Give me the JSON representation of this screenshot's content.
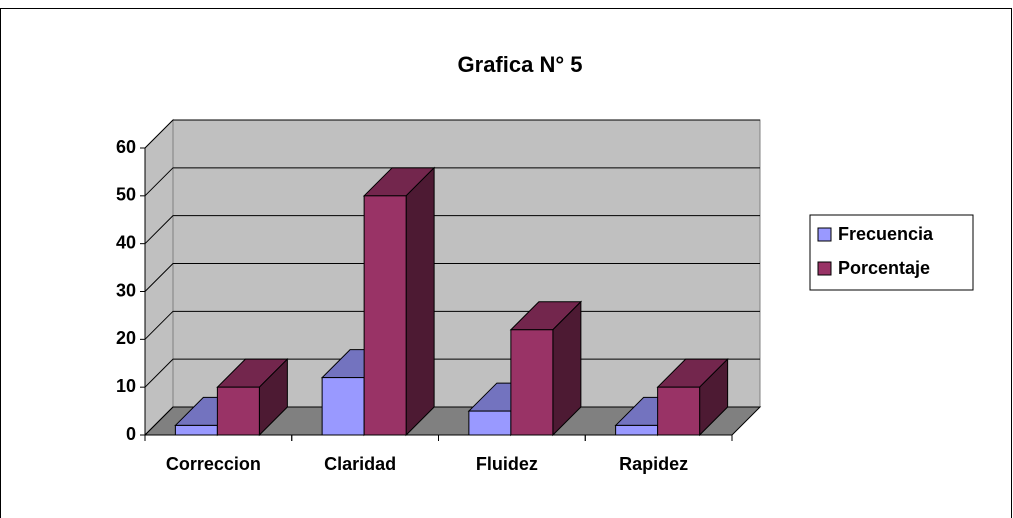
{
  "chart_data": {
    "type": "bar3d",
    "title": "Grafica N° 5",
    "categories": [
      "Correccion",
      "Claridad",
      "Fluidez",
      "Rapidez"
    ],
    "series": [
      {
        "name": "Frecuencia",
        "color": "#9999ff",
        "values": [
          2,
          12,
          5,
          2
        ]
      },
      {
        "name": "Porcentaje",
        "color": "#993366",
        "values": [
          10,
          50,
          22,
          10
        ]
      }
    ],
    "ylim": [
      0,
      60
    ],
    "yticks": [
      0,
      10,
      20,
      30,
      40,
      50,
      60
    ],
    "grid": true,
    "legend": "right"
  }
}
